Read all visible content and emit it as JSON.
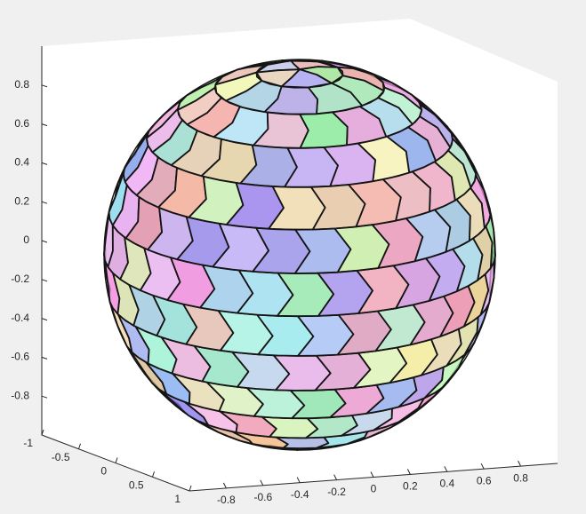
{
  "chart_data": {
    "type": "voronoi-sphere",
    "xlim": [
      -1,
      1
    ],
    "ylim": [
      -1,
      1
    ],
    "zlim": [
      -1,
      1
    ],
    "xticks": [
      -1,
      -0.5,
      0,
      0.5,
      1
    ],
    "yticks": [
      -0.8,
      -0.6,
      -0.4,
      -0.2,
      0,
      0.2,
      0.4,
      0.6,
      0.8
    ],
    "zticks": [
      -0.8,
      -0.6,
      -0.4,
      -0.2,
      0,
      0.2,
      0.4,
      0.6,
      0.8
    ]
  }
}
